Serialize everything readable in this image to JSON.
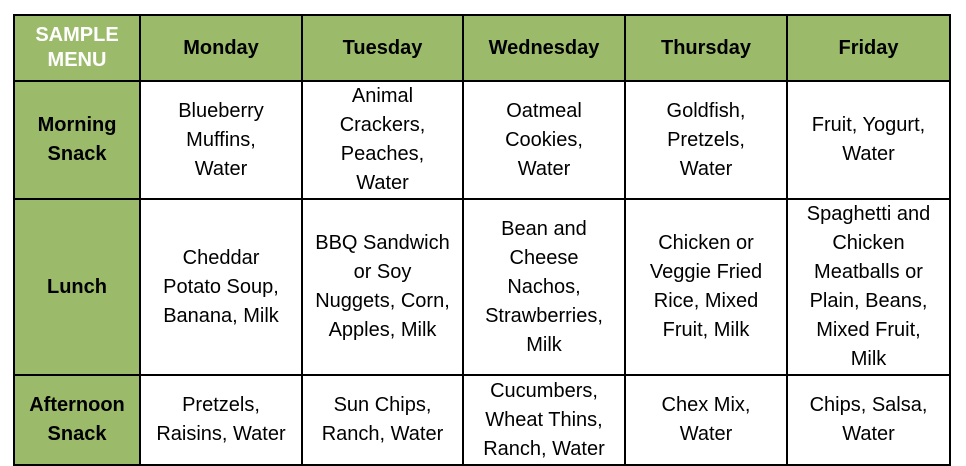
{
  "colors": {
    "header_green": "#9bbb6b",
    "corner_text": "#ffffff"
  },
  "corner_label": "SAMPLE MENU",
  "days": [
    "Monday",
    "Tuesday",
    "Wednesday",
    "Thursday",
    "Friday"
  ],
  "rows": [
    {
      "label": "Morning Snack",
      "cells": [
        "Blueberry Muffins, Water",
        "Animal Crackers, Peaches, Water",
        "Oatmeal Cookies, Water",
        "Goldfish, Pretzels, Water",
        "Fruit, Yogurt, Water"
      ]
    },
    {
      "label": "Lunch",
      "cells": [
        "Cheddar Potato Soup, Banana, Milk",
        "BBQ Sandwich or Soy Nuggets, Corn, Apples, Milk",
        "Bean and Cheese Nachos, Strawberries, Milk",
        "Chicken or Veggie Fried Rice, Mixed Fruit, Milk",
        "Spaghetti and Chicken Meatballs or Plain, Beans, Mixed Fruit, Milk"
      ]
    },
    {
      "label": "Afternoon Snack",
      "cells": [
        "Pretzels, Raisins, Water",
        "Sun Chips, Ranch, Water",
        "Cucumbers, Wheat Thins, Ranch, Water",
        "Chex Mix, Water",
        "Chips, Salsa, Water"
      ]
    }
  ]
}
